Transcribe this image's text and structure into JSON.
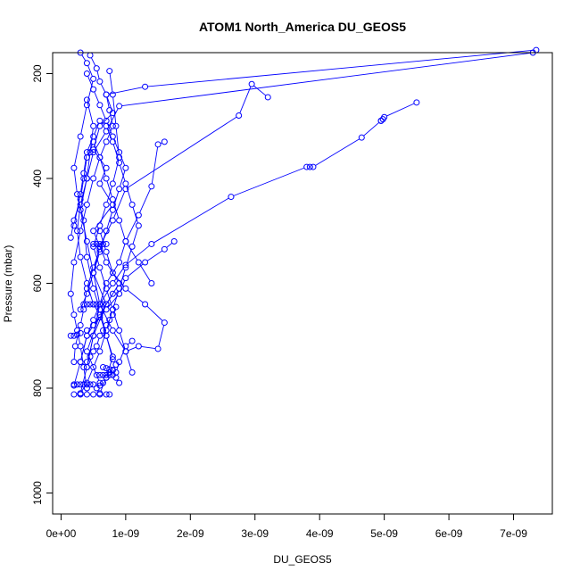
{
  "chart_data": {
    "type": "line",
    "title": "ATOM1 North_America DU_GEOS5",
    "xlabel": "DU_GEOS5",
    "ylabel": "Pressure (mbar)",
    "xlim": [
      -1.3e-10,
      7.6e-09
    ],
    "ylim": [
      1040,
      160
    ],
    "y_reversed": true,
    "grid": false,
    "marker": "open-circle",
    "x_ticks": [
      {
        "value": 0,
        "label": "0e+00"
      },
      {
        "value": 1e-09,
        "label": "1e-09"
      },
      {
        "value": 2e-09,
        "label": "2e-09"
      },
      {
        "value": 3e-09,
        "label": "3e-09"
      },
      {
        "value": 4e-09,
        "label": "4e-09"
      },
      {
        "value": 5e-09,
        "label": "5e-09"
      },
      {
        "value": 6e-09,
        "label": "6e-09"
      },
      {
        "value": 7e-09,
        "label": "7e-09"
      }
    ],
    "y_ticks": [
      {
        "value": 200,
        "label": "200"
      },
      {
        "value": 400,
        "label": "400"
      },
      {
        "value": 600,
        "label": "600"
      },
      {
        "value": 800,
        "label": "800"
      },
      {
        "value": 1000,
        "label": "1000"
      }
    ],
    "series": [
      {
        "color": "#0000ff",
        "x": [
          7.35e-09,
          1.3e-09,
          7e-10,
          8e-10,
          6e-10,
          5e-10,
          7e-10,
          6e-10,
          8e-10,
          5e-10,
          7e-10,
          9e-10,
          6e-10,
          4e-10,
          6e-10
        ],
        "y": [
          155,
          225,
          240,
          275,
          300,
          345,
          380,
          410,
          450,
          500,
          560,
          600,
          660,
          730,
          790
        ]
      },
      {
        "color": "#0000ff",
        "x": [
          5.5e-09,
          5e-09,
          4.98e-09,
          4.95e-09
        ],
        "y": [
          255,
          283,
          287,
          290
        ]
      },
      {
        "color": "#0000ff",
        "x": [
          4.95e-09,
          4.65e-09,
          3.9e-09,
          3.85e-09,
          3.8e-09,
          2.63e-09,
          1.4e-09,
          1e-09,
          8e-10,
          6e-10,
          5e-10,
          4e-10,
          3e-10,
          2e-10
        ],
        "y": [
          290,
          322,
          378,
          378,
          378,
          435,
          525,
          565,
          600,
          640,
          670,
          700,
          750,
          795
        ]
      },
      {
        "color": "#0000ff",
        "x": [
          3.2e-09,
          2.95e-09,
          2.75e-09,
          1e-09,
          8e-10,
          6e-10,
          5e-10,
          7e-10,
          5e-10,
          4e-10,
          3e-10
        ],
        "y": [
          245,
          220,
          280,
          420,
          480,
          530,
          580,
          640,
          700,
          760,
          810
        ]
      },
      {
        "color": "#0000ff",
        "x": [
          1.6e-09,
          1.5e-09,
          1.4e-09,
          1.2e-09,
          1e-09,
          9e-10,
          7e-10,
          6e-10,
          8e-10,
          1e-09,
          1.2e-09,
          1.5e-09,
          1.6e-09,
          1.3e-09,
          1e-09,
          8e-10,
          7e-10,
          6e-10
        ],
        "y": [
          330,
          335,
          415,
          470,
          520,
          560,
          600,
          640,
          690,
          730,
          720,
          725,
          675,
          640,
          610,
          580,
          540,
          500
        ]
      },
      {
        "color": "#0000ff",
        "x": [
          1.75e-09,
          1.6e-09,
          1.3e-09,
          1e-09,
          9e-10,
          7e-10,
          5e-10,
          4e-10,
          3e-10
        ],
        "y": [
          520,
          535,
          560,
          590,
          620,
          650,
          680,
          700,
          750
        ]
      },
      {
        "color": "#0000ff",
        "x": [
          7.3e-09,
          9e-10,
          7e-10,
          5e-10,
          4e-10,
          3e-10,
          4e-10,
          5e-10,
          6e-10,
          5e-10,
          4e-10
        ],
        "y": [
          160,
          262,
          310,
          350,
          400,
          460,
          520,
          580,
          640,
          700,
          760
        ]
      },
      {
        "color": "#0000ff",
        "x": [
          3e-10,
          4e-10,
          5e-10,
          4e-10,
          3e-10,
          2e-10,
          2.5e-10,
          3.5e-10,
          4e-10,
          5e-10,
          6e-10,
          7e-10,
          8e-10
        ],
        "y": [
          160,
          180,
          210,
          260,
          320,
          380,
          430,
          480,
          550,
          610,
          650,
          700,
          745
        ]
      },
      {
        "color": "#0000ff",
        "x": [
          4.5e-10,
          5.5e-10,
          6e-10,
          7e-10,
          7.5e-10,
          8e-10,
          7e-10,
          6e-10,
          5e-10,
          4e-10,
          3e-10,
          2e-10,
          1.5e-10,
          2e-10,
          2.5e-10,
          3e-10,
          3.5e-10,
          4e-10
        ],
        "y": [
          165,
          190,
          215,
          240,
          270,
          300,
          330,
          360,
          400,
          450,
          500,
          560,
          620,
          660,
          690,
          720,
          760,
          800
        ]
      },
      {
        "color": "#0000ff",
        "x": [
          2e-10,
          3e-10,
          3.5e-10,
          4e-10,
          5e-10,
          6e-10,
          7e-10,
          8e-10,
          9e-10,
          1e-09,
          1.1e-09,
          1.2e-09,
          1.1e-09,
          1e-09,
          9e-10,
          8e-10,
          7e-10,
          6e-10,
          5e-10,
          4e-10,
          3e-10,
          2e-10
        ],
        "y": [
          490,
          430,
          390,
          350,
          320,
          290,
          300,
          330,
          370,
          410,
          450,
          490,
          530,
          570,
          610,
          650,
          690,
          730,
          760,
          790,
          810,
          812
        ]
      },
      {
        "color": "#0000ff",
        "x": [
          1.5e-10,
          2e-10,
          3e-10,
          3.5e-10,
          4e-10,
          5e-10,
          6e-10,
          7e-10,
          8e-10,
          9e-10,
          1e-09,
          1.2e-09,
          1.4e-09
        ],
        "y": [
          513,
          480,
          440,
          400,
          360,
          330,
          360,
          400,
          440,
          480,
          520,
          560,
          600
        ]
      },
      {
        "color": "#0000ff",
        "x": [
          4e-10,
          5e-10,
          6e-10,
          7e-10,
          8e-10,
          9e-10,
          1e-09,
          9e-10,
          8e-10,
          7e-10,
          6e-10,
          5e-10,
          4e-10,
          3e-10
        ],
        "y": [
          200,
          230,
          260,
          290,
          320,
          350,
          380,
          420,
          460,
          500,
          540,
          580,
          620,
          650
        ]
      },
      {
        "color": "#0000ff",
        "x": [
          7.5e-10,
          8e-10,
          8.5e-10,
          9e-10,
          8e-10,
          7e-10,
          6e-10,
          5e-10,
          6e-10,
          7e-10,
          8e-10,
          9e-10,
          1e-09,
          1.1e-09
        ],
        "y": [
          195,
          240,
          300,
          360,
          410,
          450,
          490,
          530,
          570,
          610,
          650,
          690,
          730,
          770
        ]
      },
      {
        "color": "#0000ff",
        "x": [
          4e-10,
          5e-10,
          4.5e-10,
          4e-10,
          3e-10,
          2.5e-10,
          3e-10,
          4e-10,
          5e-10,
          6e-10,
          7e-10,
          8e-10,
          7e-10,
          6e-10
        ],
        "y": [
          250,
          300,
          350,
          400,
          450,
          500,
          550,
          600,
          640,
          660,
          700,
          740,
          780,
          810
        ]
      },
      {
        "color": "#0000ff",
        "x": [
          1.5e-10,
          2e-10,
          2.5e-10,
          3e-10,
          4e-10,
          5e-10,
          6e-10,
          7e-10,
          8e-10
        ],
        "y": [
          700,
          700,
          698,
          695,
          690,
          680,
          665,
          640,
          620
        ]
      },
      {
        "color": "#0000ff",
        "x": [
          3.5e-10,
          4e-10,
          4.5e-10,
          5e-10,
          5.5e-10,
          6e-10,
          6.5e-10,
          7e-10
        ],
        "y": [
          640,
          640,
          640,
          640,
          640,
          640,
          640,
          640
        ]
      },
      {
        "color": "#0000ff",
        "x": [
          2e-10,
          2.5e-10,
          3e-10,
          3.5e-10,
          4e-10,
          4.5e-10,
          5e-10
        ],
        "y": [
          793,
          793,
          793,
          793,
          793,
          793,
          793
        ]
      },
      {
        "color": "#0000ff",
        "x": [
          3e-10,
          4e-10,
          5e-10,
          6e-10,
          7e-10,
          7.5e-10
        ],
        "y": [
          812,
          812,
          812,
          812,
          812,
          812
        ]
      },
      {
        "color": "#0000ff",
        "x": [
          5.5e-10,
          6e-10,
          6.5e-10,
          7e-10,
          7.5e-10,
          8e-10,
          8.5e-10,
          9e-10
        ],
        "y": [
          775,
          775,
          775,
          775,
          775,
          775,
          780,
          790
        ]
      },
      {
        "color": "#0000ff",
        "x": [
          6.5e-10,
          7e-10,
          7.5e-10,
          8e-10,
          8.5e-10,
          9e-10,
          1e-09,
          1.1e-09
        ],
        "y": [
          760,
          762,
          764,
          766,
          770,
          750,
          720,
          710
        ]
      },
      {
        "color": "#0000ff",
        "x": [
          5e-10,
          5.5e-10,
          6e-10,
          6.5e-10,
          7e-10
        ],
        "y": [
          525,
          525,
          525,
          525,
          525
        ]
      },
      {
        "color": "#0000ff",
        "x": [
          2e-10,
          2.2e-10,
          3e-10,
          3.5e-10,
          4e-10,
          5e-10,
          6e-10,
          7e-10
        ],
        "y": [
          750,
          720,
          680,
          650,
          610,
          570,
          535,
          500
        ]
      },
      {
        "color": "#0000ff",
        "x": [
          4e-10,
          4.5e-10,
          5e-10,
          5.5e-10,
          6e-10,
          6.5e-10,
          7e-10,
          7.5e-10,
          8e-10,
          8.5e-10
        ],
        "y": [
          750,
          740,
          730,
          720,
          700,
          690,
          680,
          670,
          660,
          645
        ]
      },
      {
        "color": "#0000ff",
        "x": [
          5.5e-10,
          6e-10,
          6.5e-10,
          7e-10,
          7.5e-10,
          8e-10,
          8.5e-10
        ],
        "y": [
          800,
          795,
          790,
          780,
          770,
          765,
          755
        ]
      }
    ]
  }
}
